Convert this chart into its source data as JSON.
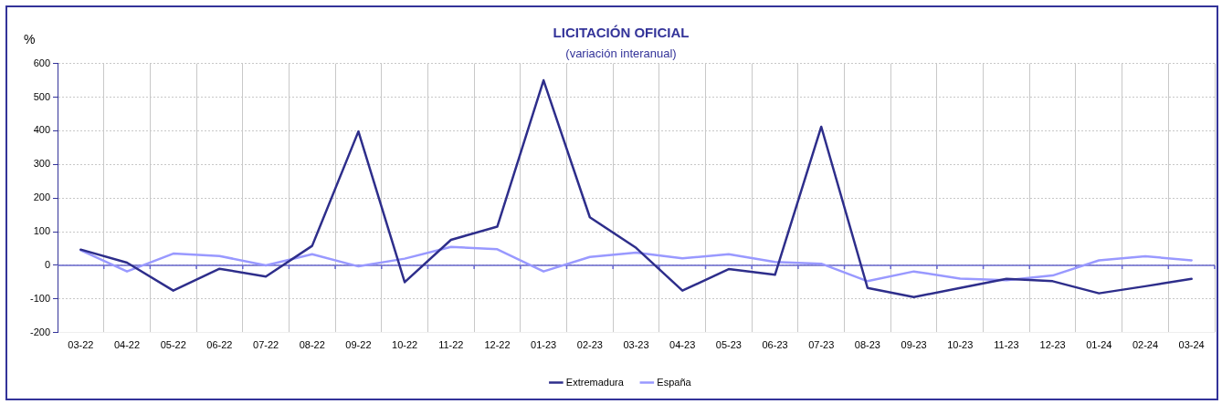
{
  "chart_data": {
    "type": "line",
    "title": "LICITACIÓN OFICIAL",
    "subtitle": "(variación interanual)",
    "ylabel": "%",
    "categories": [
      "03-22",
      "04-22",
      "05-22",
      "06-22",
      "07-22",
      "08-22",
      "09-22",
      "10-22",
      "11-22",
      "12-22",
      "01-23",
      "02-23",
      "03-23",
      "04-23",
      "05-23",
      "06-23",
      "07-23",
      "08-23",
      "09-23",
      "10-23",
      "11-23",
      "12-23",
      "01-24",
      "02-24",
      "03-24"
    ],
    "series": [
      {
        "name": "Extremadura",
        "color": "#2e2e8b",
        "values": [
          47,
          8,
          -75,
          -10,
          -33,
          58,
          398,
          -50,
          76,
          115,
          550,
          143,
          52,
          -75,
          -11,
          -28,
          412,
          -67,
          -94,
          -67,
          -40,
          -47,
          -83,
          -62,
          -40
        ]
      },
      {
        "name": "España",
        "color": "#9999ff",
        "values": [
          45,
          -18,
          35,
          28,
          0,
          33,
          -3,
          20,
          55,
          48,
          -18,
          25,
          38,
          21,
          33,
          10,
          5,
          -47,
          -18,
          -39,
          -44,
          -30,
          15,
          27,
          15
        ]
      }
    ],
    "ylim": [
      -200,
      600
    ],
    "yticks": [
      -200,
      -100,
      0,
      100,
      200,
      300,
      400,
      500,
      600
    ],
    "ref_lines": [
      {
        "axis": "y",
        "value": 0,
        "color": "#6666cc"
      }
    ],
    "grid": true,
    "legend": "bottom",
    "marker": "none",
    "line_style": "solid"
  }
}
